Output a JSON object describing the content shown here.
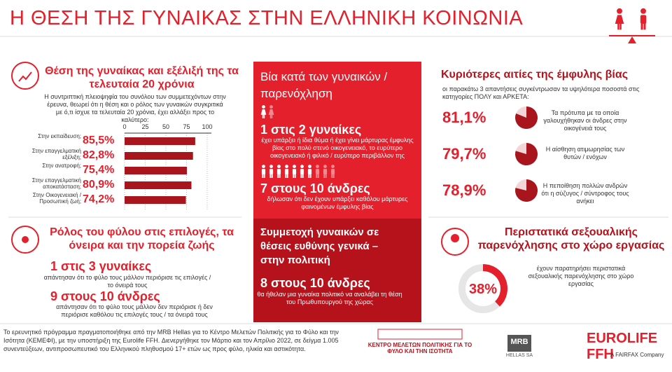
{
  "header": {
    "title": "Η ΘΕΣΗ ΤΗΣ ΓΥΝΑΙΚΑΣ ΣΤΗΝ ΕΛΛΗΝΙΚΗ ΚΟΙΝΩΝΙΑ"
  },
  "position": {
    "title": "Θέση της γυναίκας και εξέλιξή της τα τελευταία 20 χρόνια",
    "intro": "Η συντριπτική πλειοψηφία του συνόλου των συμμετεχόντων στην έρευνα, θεωρεί ότι η θέση και ο ρόλος των γυναικών συγκριτικά με ό,τι ίσχυε τα τελευταία 20 χρόνια, έχει αλλάξει προς το καλύτερο:",
    "chart": {
      "type": "bar",
      "categories": [
        "Στην εκπαίδευση;",
        "Στην επαγγελματική εξέλιξη;",
        "Στην ανατροφή;",
        "Στην επαγγελματική αποκατάσταση;",
        "Στην Οικογενειακή / Προσωπική ζωή;"
      ],
      "values": [
        85.5,
        82.8,
        75.4,
        80.9,
        74.2
      ],
      "value_labels": [
        "85,5%",
        "82,8%",
        "75,4%",
        "80,9%",
        "74,2%"
      ],
      "xlim": [
        0,
        100
      ],
      "xticks": [
        0,
        25,
        50,
        75,
        100
      ],
      "color": "#a8151c"
    }
  },
  "gender_role": {
    "title": "Ρόλος του φύλου στις επιλογές, τα όνειρα και την πορεία ζωής",
    "stats": [
      {
        "figure": "1 στις 3 γυναίκες",
        "text": "απάντησαν ότι το φύλο τους μάλλον περιόρισε τις επιλογές / το όνειρά τους"
      },
      {
        "figure": "9 στους 10 άνδρες",
        "text": "απάντησαν ότι το φύλο τους μάλλον δεν περιόρισε ή δεν περιόρισε καθόλου τις επιλογές τους / τα όνειρά τους"
      }
    ]
  },
  "violence": {
    "title": "Βία κατά των γυναικών / παρενόχληση",
    "stats": [
      {
        "figure": "1 στις 2 γυναίκες",
        "text": "έχει υπάρξει ή ίδια θύμα ή έχει γίνει μάρτυρας έμφυλης βίας στο πολύ στενό οικογενειακό, το ευρύτερο οικογενειακό ή φιλικό / ευρύτερο περιβάλλον της"
      },
      {
        "figure": "7 στους 10 άνδρες",
        "text": "δήλωσαν ότι δεν έχουν υπάρξει καθόλου μάρτυρες φαινομένων έμφυλης βίας"
      }
    ]
  },
  "leadership": {
    "title": "Συμμετοχή γυναικών σε θέσεις ευθύνης γενικά – στην πολιτική",
    "stat": {
      "figure": "8 στους 10 άνδρες",
      "text": "θα ήθελαν μια γυναίκα πολιτικό να αναλάβει τη θέση του Πρωθυπουργού της χώρας"
    }
  },
  "causes": {
    "title": "Κυριότερες αιτίες της έμφυλης βίας",
    "intro": "οι παρακάτω 3 απαντήσεις συγκέντρωσαν τα υψηλότερα ποσοστά στις κατηγορίες ΠΟΛΥ και ΑΡΚΕΤΑ:",
    "chart": {
      "type": "pie",
      "categories": [
        "Τα πρότυπα με τα οποία γαλουχήθηκαν οι άνδρες στην οικογένειά τους",
        "Η αίσθηση ατιμωρησίας των θυτών / ενόχων",
        "Η πεποίθηση πολλών ανδρών ότι η σύζυγος / σύντροφος τους ανήκει"
      ],
      "values": [
        81.1,
        79.7,
        78.9
      ],
      "value_labels": [
        "81,1%",
        "79,7%",
        "78,9%"
      ],
      "color": "#a8151c"
    }
  },
  "harassment": {
    "title": "Περιστατικά σεξουαλικής παρενόχλησης στο χώρο εργασίας",
    "chart": {
      "type": "donut",
      "values": [
        38
      ],
      "value_labels": [
        "38%"
      ],
      "color": "#e3202c"
    },
    "text": "έχουν παρατηρήσει περιστατικά σεξουαλικής παρενόχλησης στο χώρο εργασίας"
  },
  "footer": {
    "note": "Το ερευνητικό πρόγραμμα πραγματοποιήθηκε από την MRB Hellas για το Κέντρο Μελετών Πολιτικής για το Φύλο και την Ισότητα (ΚΕΜΕΦΙ), με την υποστήριξη της Eurolife FFH. Διενεργήθηκε τον Μάρτιο και τον Απρίλιο 2022, σε δείγμα 1.005 συνεντεύξεων, αντιπροσωπευτικό του Ελληνικού πληθυσμού 17+ ετών ως προς φύλο, ηλικία και αστικότητα.",
    "logos": {
      "kemefi": "ΚΕΝΤΡΟ ΜΕΛΕΤΩΝ ΠΟΛΙΤΙΚΗΣ ΓΙΑ ΤΟ ΦΥΛΟ ΚΑΙ ΤΗΝ ΙΣΟΤΗΤΑ",
      "mrb": "MRB",
      "mrb_sub": "HELLAS SA",
      "eurolife": "EUROLIFE FFH",
      "fairfax": "A FAIRFAX Company"
    }
  }
}
